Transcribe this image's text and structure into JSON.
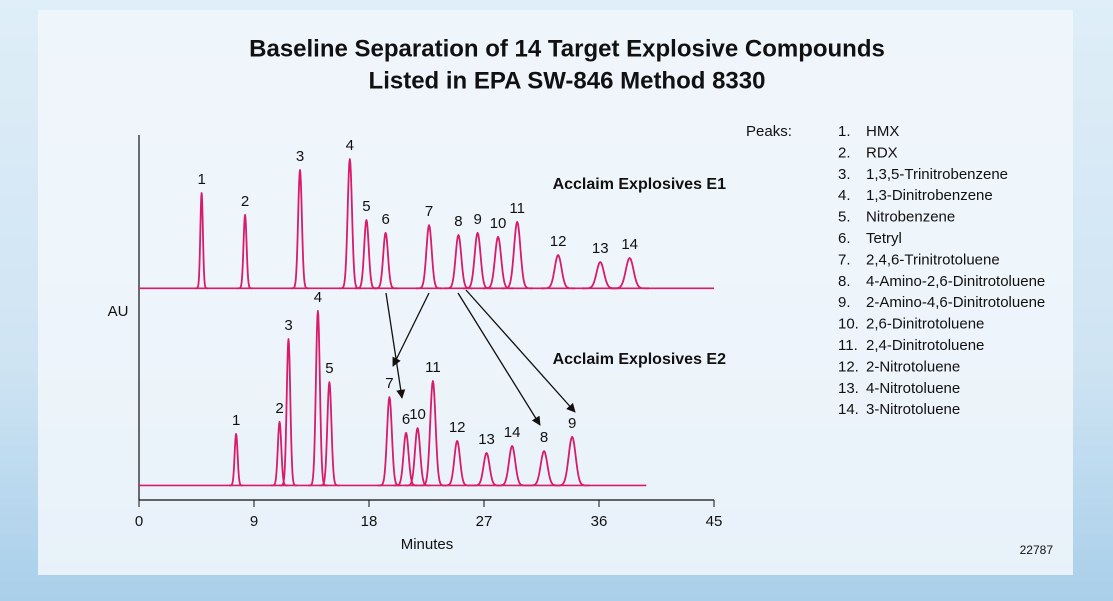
{
  "chart_data": {
    "type": "chromatogram",
    "title": [
      "Baseline Separation of 14 Target Explosive Compounds",
      "Listed in EPA SW-846 Method 8330"
    ],
    "x_label": "Minutes",
    "y_label": "AU",
    "xlim": [
      0,
      45
    ],
    "xticks": [
      0,
      9,
      18,
      27,
      36,
      45
    ],
    "ylim": [
      0,
      100
    ],
    "series": [
      {
        "name": "Acclaim Explosives E1",
        "color": "#d81b6a",
        "baseline": 58,
        "x_range": [
          0,
          45
        ],
        "peaks": {
          "labels": [
            "1",
            "2",
            "3",
            "4",
            "5",
            "6",
            "7",
            "8",
            "9",
            "10",
            "11",
            "12",
            "13",
            "14"
          ],
          "x": [
            4.9,
            8.3,
            12.6,
            16.5,
            17.8,
            19.3,
            22.7,
            25.0,
            26.5,
            28.1,
            29.6,
            32.8,
            36.1,
            38.4
          ],
          "heights": [
            26.1,
            20.1,
            32.4,
            35.4,
            18.7,
            15.2,
            17.3,
            14.6,
            15.2,
            14.1,
            18.2,
            9.1,
            7.2,
            8.3
          ]
        }
      },
      {
        "name": "Acclaim Explosives E2",
        "color": "#d81b6a",
        "baseline": 4,
        "x_range": [
          0,
          39.7
        ],
        "peaks": {
          "labels": [
            "1",
            "2",
            "3",
            "4",
            "5",
            "7",
            "6",
            "10",
            "11",
            "12",
            "13",
            "14",
            "8",
            "9"
          ],
          "x": [
            7.6,
            11.0,
            11.7,
            14.0,
            14.9,
            19.6,
            20.9,
            21.8,
            23.0,
            24.9,
            27.2,
            29.2,
            31.7,
            33.9
          ],
          "heights": [
            14.1,
            17.4,
            40.1,
            47.8,
            28.3,
            24.2,
            14.4,
            15.7,
            28.6,
            12.2,
            8.9,
            10.8,
            9.4,
            13.3
          ]
        }
      }
    ],
    "legend": {
      "title": "Peaks:",
      "items": [
        {
          "number": "1.",
          "name": "HMX"
        },
        {
          "number": "2.",
          "name": "RDX"
        },
        {
          "number": "3.",
          "name": "1,3,5-Trinitrobenzene"
        },
        {
          "number": "4.",
          "name": "1,3-Dinitrobenzene"
        },
        {
          "number": "5.",
          "name": "Nitrobenzene"
        },
        {
          "number": "6.",
          "name": "Tetryl"
        },
        {
          "number": "7.",
          "name": "2,4,6-Trinitrotoluene"
        },
        {
          "number": "8.",
          "name": "4-Amino-2,6-Dinitrotoluene"
        },
        {
          "number": "9.",
          "name": "2-Amino-4,6-Dinitrotoluene"
        },
        {
          "number": "10.",
          "name": "2,6-Dinitrotoluene"
        },
        {
          "number": "11.",
          "name": "2,4-Dinitrotoluene"
        },
        {
          "number": "12.",
          "name": "2-Nitrotoluene"
        },
        {
          "number": "13.",
          "name": "4-Nitrotoluene"
        },
        {
          "number": "14.",
          "name": "3-Nitrotoluene"
        }
      ]
    },
    "figure_number": "22787"
  }
}
